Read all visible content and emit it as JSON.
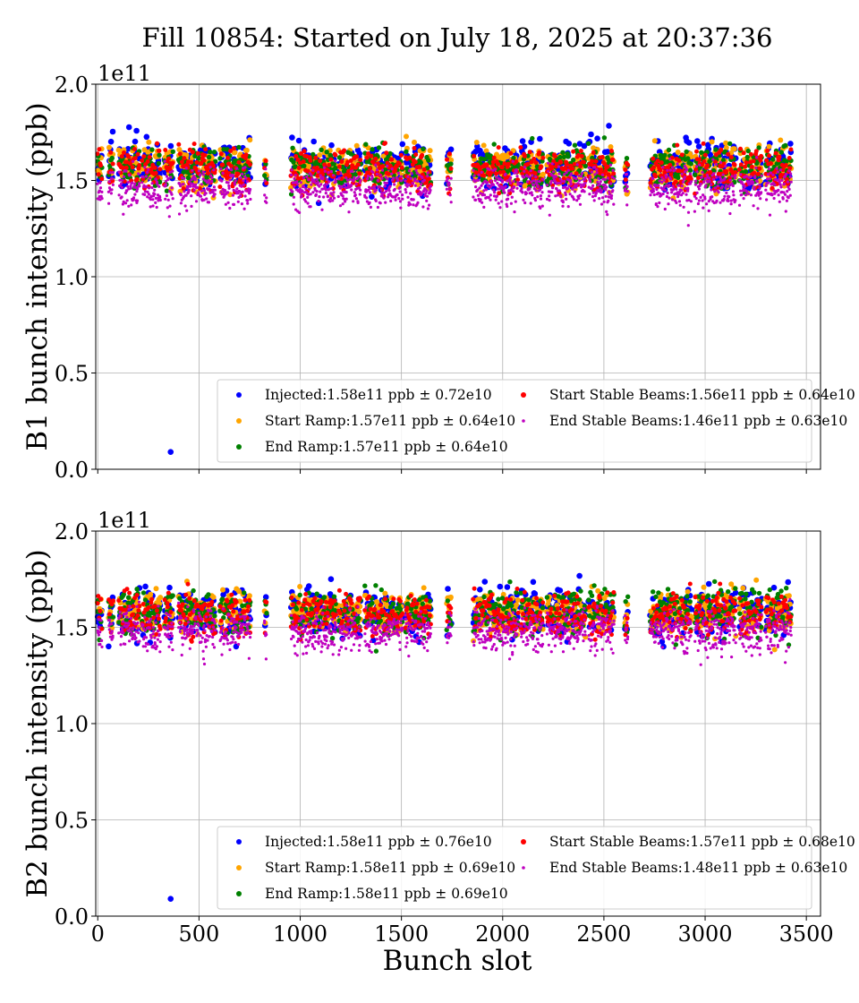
{
  "chart_data": {
    "type": "scatter",
    "title": "Fill 10854: Started on July 18, 2025 at 20:37:36",
    "xlabel": "Bunch slot",
    "xlim": [
      -10,
      3570
    ],
    "xticks": [
      0,
      500,
      1000,
      1500,
      2000,
      2500,
      3000,
      3500
    ],
    "xtick_labels": [
      "0",
      "500",
      "1000",
      "1500",
      "2000",
      "2500",
      "3000",
      "3500"
    ],
    "grid": true,
    "colors": {
      "Injected": "#0000ff",
      "Start Ramp": "#ffa500",
      "End Ramp": "#008000",
      "Start Stable Beams": "#ff0000",
      "End Stable Beams": "#bf00bf"
    },
    "trains_bunch_slot_ranges": [
      [
        0,
        20
      ],
      [
        55,
        75
      ],
      [
        105,
        205
      ],
      [
        220,
        310
      ],
      [
        330,
        370
      ],
      [
        400,
        580
      ],
      [
        605,
        755
      ],
      [
        825,
        835
      ],
      [
        955,
        1175
      ],
      [
        1190,
        1300
      ],
      [
        1320,
        1505
      ],
      [
        1520,
        1645
      ],
      [
        1725,
        1745
      ],
      [
        1855,
        2075
      ],
      [
        2090,
        2200
      ],
      [
        2220,
        2410
      ],
      [
        2425,
        2550
      ],
      [
        2605,
        2620
      ],
      [
        2730,
        2930
      ],
      [
        2950,
        3150
      ],
      [
        3170,
        3280
      ],
      [
        3300,
        3425
      ]
    ],
    "panels": [
      {
        "ylabel": "B1 bunch intensity (ppb)",
        "ylim": [
          0,
          2.0
        ],
        "yticks": [
          0.0,
          0.5,
          1.0,
          1.5,
          2.0
        ],
        "ytick_labels": [
          "0.0",
          "0.5",
          "1.0",
          "1.5",
          "2.0"
        ],
        "y_offset_label": "1e11",
        "legend_location": "lower right",
        "outliers": [
          {
            "series": "Injected",
            "x": 360,
            "y": 0.09
          }
        ],
        "series": [
          {
            "name": "Injected",
            "legend": "Injected:1.58e11 ppb ± 0.72e10",
            "mean": 1.58,
            "std": 0.072
          },
          {
            "name": "Start Ramp",
            "legend": "Start Ramp:1.57e11 ppb ± 0.64e10",
            "mean": 1.57,
            "std": 0.064
          },
          {
            "name": "End Ramp",
            "legend": "End Ramp:1.57e11 ppb ± 0.64e10",
            "mean": 1.57,
            "std": 0.064
          },
          {
            "name": "Start Stable Beams",
            "legend": "Start Stable Beams:1.56e11 ppb ± 0.64e10",
            "mean": 1.56,
            "std": 0.064
          },
          {
            "name": "End Stable Beams",
            "legend": "End Stable Beams:1.46e11 ppb ± 0.63e10",
            "mean": 1.46,
            "std": 0.063
          }
        ]
      },
      {
        "ylabel": "B2 bunch intensity (ppb)",
        "ylim": [
          0,
          2.0
        ],
        "yticks": [
          0.0,
          0.5,
          1.0,
          1.5,
          2.0
        ],
        "ytick_labels": [
          "0.0",
          "0.5",
          "1.0",
          "1.5",
          "2.0"
        ],
        "y_offset_label": "1e11",
        "legend_location": "lower right",
        "outliers": [
          {
            "series": "Injected",
            "x": 360,
            "y": 0.09
          }
        ],
        "series": [
          {
            "name": "Injected",
            "legend": "Injected:1.58e11 ppb ± 0.76e10",
            "mean": 1.58,
            "std": 0.076
          },
          {
            "name": "Start Ramp",
            "legend": "Start Ramp:1.58e11 ppb ± 0.69e10",
            "mean": 1.58,
            "std": 0.069
          },
          {
            "name": "End Ramp",
            "legend": "End Ramp:1.58e11 ppb ± 0.69e10",
            "mean": 1.58,
            "std": 0.069
          },
          {
            "name": "Start Stable Beams",
            "legend": "Start Stable Beams:1.57e11 ppb ± 0.68e10",
            "mean": 1.57,
            "std": 0.068
          },
          {
            "name": "End Stable Beams",
            "legend": "End Stable Beams:1.48e11 ppb ± 0.63e10",
            "mean": 1.48,
            "std": 0.063
          }
        ]
      }
    ]
  }
}
